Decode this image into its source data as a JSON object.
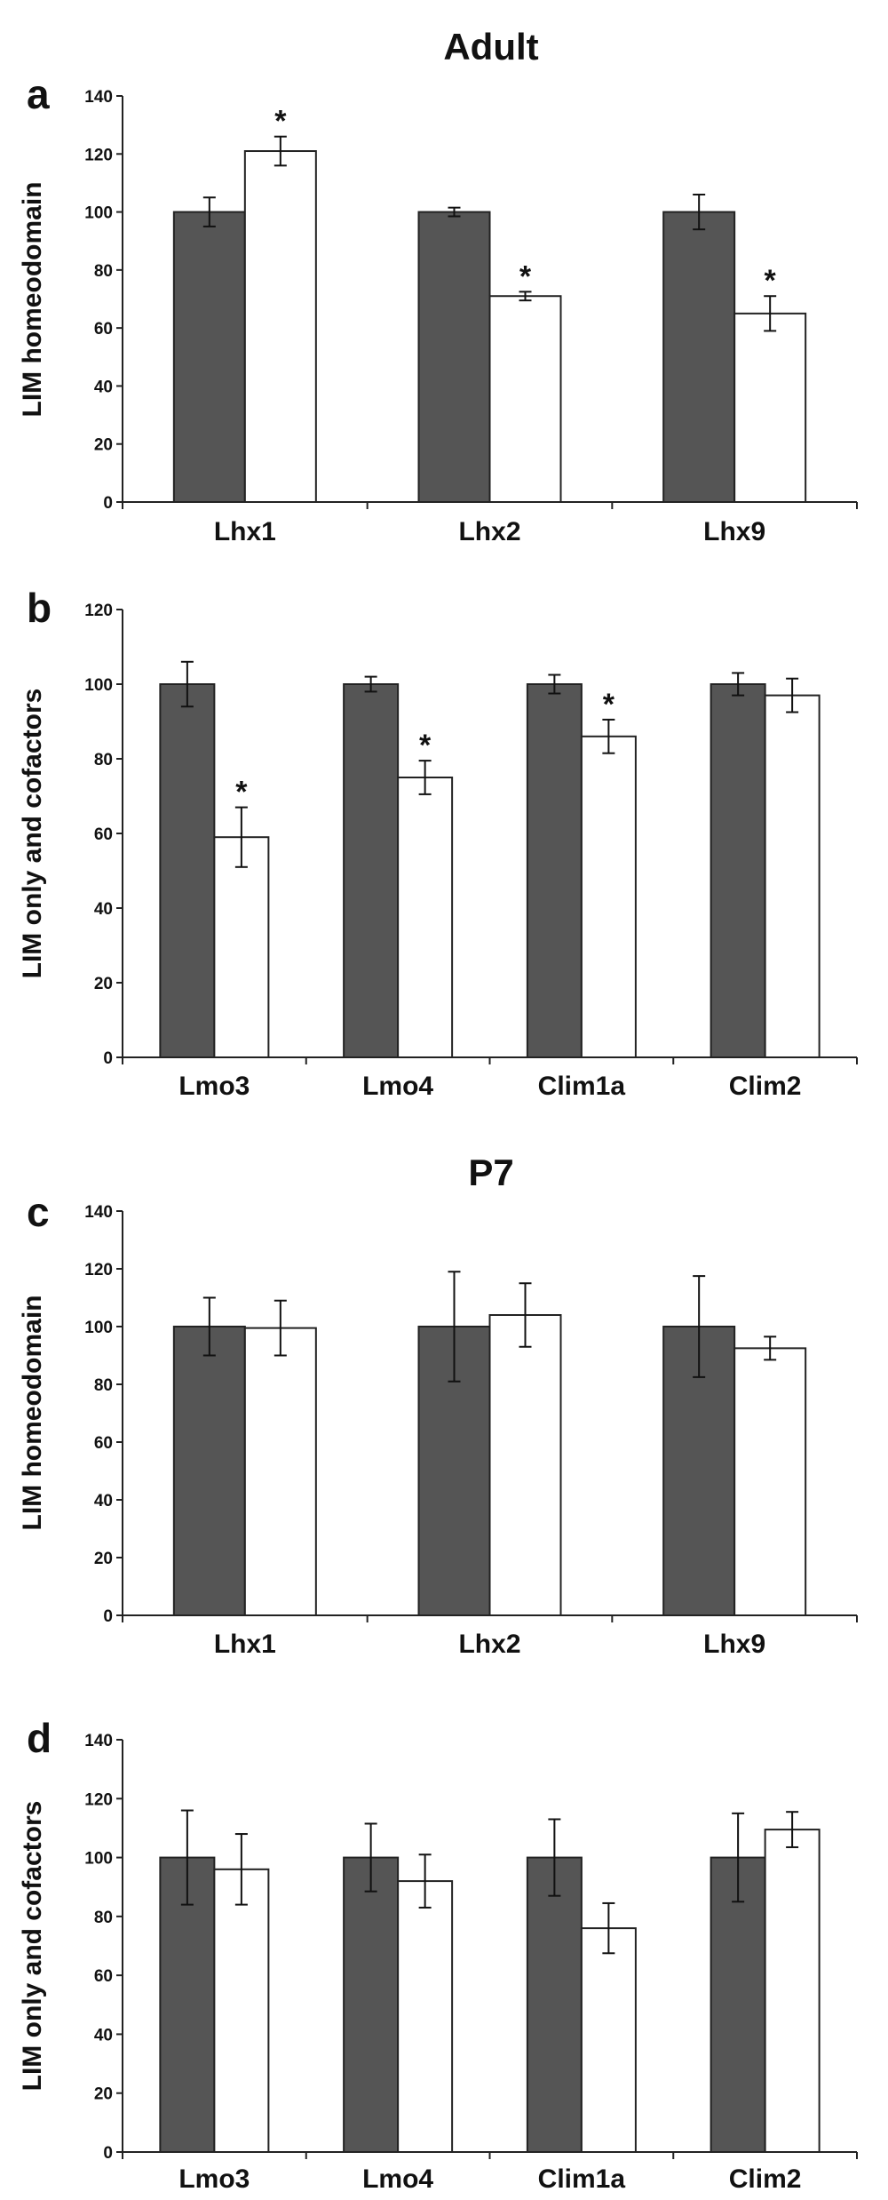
{
  "figure": {
    "headings": [
      "Adult",
      "P7"
    ],
    "colors": {
      "dark_bar": "#555555",
      "light_bar": "#ffffff",
      "axis": "#222222"
    }
  },
  "chart_data": [
    {
      "type": "bar",
      "panel": "a",
      "ylabel": "LIM homeodomain",
      "ylim": [
        0,
        140
      ],
      "yticks": [
        0,
        20,
        40,
        60,
        80,
        100,
        120,
        140
      ],
      "categories": [
        "Lhx1",
        "Lhx2",
        "Lhx9"
      ],
      "series": [
        {
          "name": "dark",
          "values": [
            100,
            100,
            100
          ],
          "errors": [
            5,
            1.5,
            6
          ]
        },
        {
          "name": "white",
          "values": [
            121,
            71,
            65
          ],
          "errors": [
            5,
            1.5,
            6
          ]
        }
      ],
      "significant": [
        true,
        true,
        true
      ],
      "annotation": "*"
    },
    {
      "type": "bar",
      "panel": "b",
      "ylabel": "LIM only and cofactors",
      "ylim": [
        0,
        120
      ],
      "yticks": [
        0,
        20,
        40,
        60,
        80,
        100,
        120
      ],
      "categories": [
        "Lmo3",
        "Lmo4",
        "Clim1a",
        "Clim2"
      ],
      "series": [
        {
          "name": "dark",
          "values": [
            100,
            100,
            100,
            100
          ],
          "errors": [
            6,
            2,
            2.5,
            3
          ]
        },
        {
          "name": "white",
          "values": [
            59,
            75,
            86,
            97
          ],
          "errors": [
            8,
            4.5,
            4.5,
            4.5
          ]
        }
      ],
      "significant": [
        true,
        true,
        true,
        false
      ],
      "annotation": "*"
    },
    {
      "type": "bar",
      "panel": "c",
      "ylabel": "LIM homeodomain",
      "ylim": [
        0,
        140
      ],
      "yticks": [
        0,
        20,
        40,
        60,
        80,
        100,
        120,
        140
      ],
      "categories": [
        "Lhx1",
        "Lhx2",
        "Lhx9"
      ],
      "series": [
        {
          "name": "dark",
          "values": [
            100,
            100,
            100
          ],
          "errors": [
            10,
            19,
            17.5
          ]
        },
        {
          "name": "white",
          "values": [
            99.5,
            104,
            92.5
          ],
          "errors": [
            9.5,
            11,
            4
          ]
        }
      ],
      "significant": [
        false,
        false,
        false
      ],
      "annotation": "*"
    },
    {
      "type": "bar",
      "panel": "d",
      "ylabel": "LIM only and cofactors",
      "ylim": [
        0,
        140
      ],
      "yticks": [
        0,
        20,
        40,
        60,
        80,
        100,
        120,
        140
      ],
      "categories": [
        "Lmo3",
        "Lmo4",
        "Clim1a",
        "Clim2"
      ],
      "series": [
        {
          "name": "dark",
          "values": [
            100,
            100,
            100,
            100
          ],
          "errors": [
            16,
            11.5,
            13,
            15
          ]
        },
        {
          "name": "white",
          "values": [
            96,
            92,
            76,
            109.5
          ],
          "errors": [
            12,
            9,
            8.5,
            6
          ]
        }
      ],
      "significant": [
        false,
        false,
        false,
        false
      ],
      "annotation": "*"
    }
  ]
}
